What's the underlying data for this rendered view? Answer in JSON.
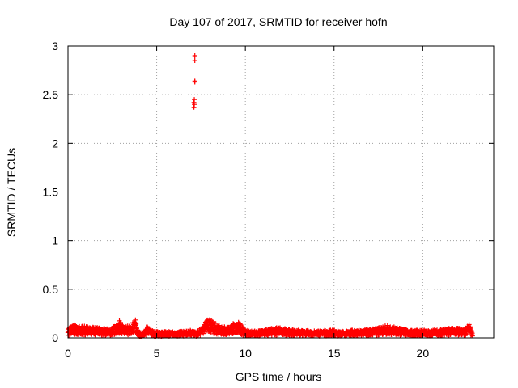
{
  "chart_data": {
    "type": "scatter",
    "title": "Day 107 of 2017, SRMTID for receiver hofn",
    "xlabel": "GPS time / hours",
    "ylabel": "SRMTID / TECUs",
    "xlim": [
      0,
      24
    ],
    "ylim": [
      0,
      3
    ],
    "xticks": [
      0,
      5,
      10,
      15,
      20
    ],
    "xtick_labels": [
      "0",
      "5",
      "10",
      "15",
      "20"
    ],
    "yticks": [
      0,
      0.5,
      1,
      1.5,
      2,
      2.5,
      3
    ],
    "ytick_labels": [
      "0",
      "0.5",
      "1",
      "1.5",
      "2",
      "2.5",
      "3"
    ],
    "grid": true,
    "marker": "plus",
    "color": "#ff0000",
    "series": [
      {
        "name": "SRMTID",
        "outliers_x": [
          7.15,
          7.15,
          7.15,
          7.15,
          7.12,
          7.12,
          7.1,
          7.1
        ],
        "outliers_y": [
          2.9,
          2.85,
          2.63,
          2.64,
          2.45,
          2.4,
          2.42,
          2.37
        ],
        "envelope_x": [
          0,
          0.3,
          0.6,
          1.0,
          1.5,
          2.0,
          2.5,
          2.9,
          3.2,
          3.6,
          3.8,
          4.0,
          4.3,
          4.5,
          4.8,
          5.2,
          5.6,
          6.0,
          6.5,
          6.9,
          7.2,
          7.6,
          7.9,
          8.2,
          8.6,
          9.0,
          9.4,
          9.6,
          10.0,
          10.5,
          11.0,
          11.5,
          12.0,
          12.5,
          13.0,
          13.5,
          14.0,
          14.5,
          15.0,
          15.5,
          16.0,
          16.5,
          17.0,
          17.5,
          18.0,
          18.5,
          19.0,
          19.5,
          20.0,
          20.5,
          21.0,
          21.5,
          22.0,
          22.4,
          22.6,
          22.8
        ],
        "envelope_y": [
          0.09,
          0.14,
          0.13,
          0.12,
          0.11,
          0.1,
          0.11,
          0.18,
          0.12,
          0.14,
          0.2,
          0.05,
          0.06,
          0.13,
          0.07,
          0.06,
          0.07,
          0.06,
          0.07,
          0.08,
          0.06,
          0.12,
          0.2,
          0.17,
          0.12,
          0.11,
          0.16,
          0.17,
          0.08,
          0.07,
          0.08,
          0.1,
          0.11,
          0.09,
          0.08,
          0.08,
          0.07,
          0.08,
          0.08,
          0.07,
          0.08,
          0.08,
          0.09,
          0.11,
          0.13,
          0.11,
          0.09,
          0.08,
          0.08,
          0.08,
          0.09,
          0.1,
          0.1,
          0.09,
          0.15,
          0.07
        ],
        "end_hour": 22.8
      }
    ]
  }
}
